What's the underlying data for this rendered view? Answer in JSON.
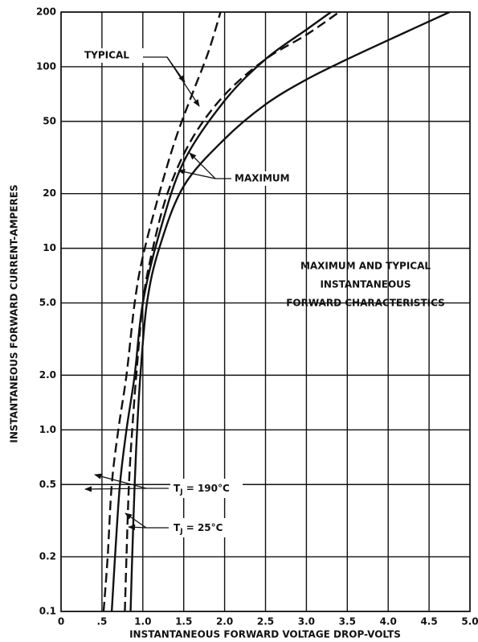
{
  "chart_data": {
    "type": "line",
    "title": [
      "MAXIMUM AND TYPICAL",
      "INSTANTANEOUS",
      "FORWARD CHARACTERISTICS"
    ],
    "x_label": "INSTANTANEOUS FORWARD VOLTAGE DROP-VOLTS",
    "y_label": "INSTANTANEOUS FORWARD CURRENT-AMPERES",
    "xlim": [
      0,
      5
    ],
    "ylim": [
      0.1,
      200
    ],
    "y_scale": "log",
    "grid": true,
    "xticks": [
      0,
      {
        "value": 0.5,
        "label": ".5"
      },
      {
        "value": 1,
        "label": "1.0"
      },
      1.5,
      {
        "value": 2,
        "label": "2.0"
      },
      2.5,
      {
        "value": 3,
        "label": "3.0"
      },
      3.5,
      {
        "value": 4,
        "label": "4.0"
      },
      4.5,
      {
        "value": 5,
        "label": "5.0"
      }
    ],
    "yticks": [
      0.1,
      0.2,
      0.5,
      {
        "value": 1,
        "label": "1.0"
      },
      {
        "value": 2,
        "label": "2.0"
      },
      {
        "value": 5,
        "label": "5.0"
      },
      10,
      20,
      50,
      100,
      200
    ],
    "series": [
      {
        "color": "#111111",
        "style": "dashed",
        "x": [
          0.52,
          0.57,
          0.62,
          0.7,
          0.8,
          0.9,
          1.0,
          1.2,
          1.4,
          1.6,
          1.8,
          1.95
        ],
        "values": [
          0.1,
          0.2,
          0.5,
          1,
          2,
          5,
          9,
          20,
          40,
          70,
          120,
          200
        ]
      },
      {
        "color": "#111111",
        "style": "dashed",
        "x": [
          0.78,
          0.8,
          0.83,
          0.87,
          0.92,
          1.0,
          1.1,
          1.3,
          1.6,
          2.0,
          2.5,
          3.0,
          3.4
        ],
        "values": [
          0.1,
          0.2,
          0.5,
          1,
          2,
          5,
          9,
          20,
          40,
          70,
          110,
          150,
          200
        ]
      },
      {
        "color": "#111111",
        "style": "solid",
        "x": [
          0.62,
          0.66,
          0.72,
          0.8,
          0.9,
          1.0,
          1.2,
          1.5,
          2.0,
          2.5,
          3.0,
          3.3
        ],
        "values": [
          0.1,
          0.2,
          0.5,
          1,
          2,
          5,
          12,
          30,
          65,
          110,
          160,
          200
        ]
      },
      {
        "color": "#111111",
        "style": "solid",
        "x": [
          0.85,
          0.87,
          0.9,
          0.93,
          0.97,
          1.05,
          1.2,
          1.5,
          2.0,
          2.5,
          3.0,
          3.5,
          4.0,
          4.75
        ],
        "values": [
          0.1,
          0.2,
          0.5,
          1,
          2,
          5,
          10,
          22,
          40,
          62,
          85,
          110,
          140,
          200
        ]
      }
    ],
    "annotations": [
      {
        "text": "TYPICAL"
      },
      {
        "text": "MAXIMUM"
      },
      {
        "text": "T",
        "subscript": "J",
        "suffix": " = 190°C"
      },
      {
        "text": "T",
        "subscript": "J",
        "suffix": " = 25°C"
      }
    ]
  }
}
